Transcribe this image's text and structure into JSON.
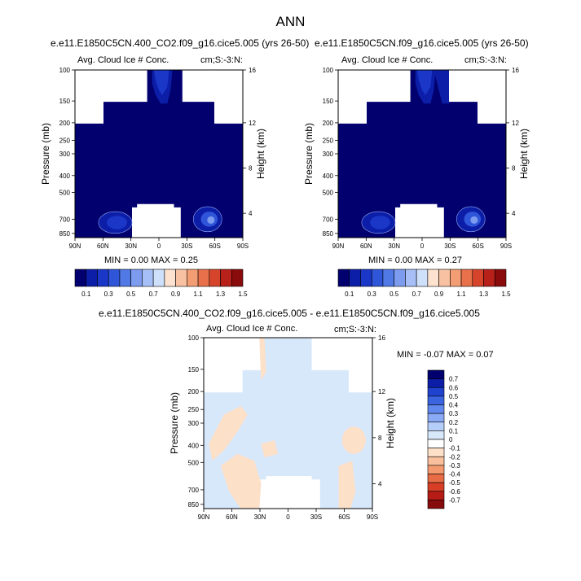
{
  "main_title": "ANN",
  "colors": {
    "seq": [
      "#02006e",
      "#0c1ea8",
      "#1a37c8",
      "#2f55d8",
      "#5079e6",
      "#7d9cf0",
      "#a6c0f7",
      "#cfe0fb",
      "#fce2cf",
      "#f8c2a2",
      "#f39d74",
      "#e8704a",
      "#d6452b",
      "#b8201a",
      "#8a0b0b"
    ],
    "div": [
      "#02006e",
      "#0c1ea8",
      "#1f43cf",
      "#3a64e0",
      "#6088ee",
      "#8aaaf5",
      "#b5cdf9",
      "#d8e8fb",
      "#ffffff",
      "#fde0c8",
      "#f9c09d",
      "#f39a70",
      "#e86c45",
      "#d63f26",
      "#b51c15",
      "#870b0b"
    ],
    "background": "#ffffff"
  },
  "chart_data": [
    {
      "type": "contour",
      "title": "e.e11.E1850C5CN.400_CO2.f09_g16.cice5.005 (yrs 26-50)",
      "subtitle_left": "Avg. Cloud Ice # Conc.",
      "subtitle_right": "cm;S:-3:N:",
      "ylabel": "Pressure (mb)",
      "ylabel_right": "Height (km)",
      "xticks": [
        "90N",
        "60N",
        "30N",
        "0",
        "30S",
        "60S",
        "90S"
      ],
      "yticks": [
        "100",
        "150",
        "200",
        "250",
        "300",
        "400",
        "500",
        "700",
        "850"
      ],
      "yticks_right": [
        "16",
        "12",
        "8",
        "4"
      ],
      "min_max": "MIN =  0.00  MAX =  0.25",
      "levels": [
        "0.1",
        "0.3",
        "0.5",
        "0.7",
        "0.9",
        "1.1",
        "1.3",
        "1.5"
      ],
      "fill_color": "#02006e"
    },
    {
      "type": "contour",
      "title": "e.e11.E1850C5CN.f09_g16.cice5.005 (yrs 26-50)",
      "subtitle_left": "Avg. Cloud Ice # Conc.",
      "subtitle_right": "cm;S:-3:N:",
      "ylabel": "Pressure (mb)",
      "ylabel_right": "Height (km)",
      "xticks": [
        "90N",
        "60N",
        "30N",
        "0",
        "30S",
        "60S",
        "90S"
      ],
      "yticks": [
        "100",
        "150",
        "200",
        "250",
        "300",
        "400",
        "500",
        "700",
        "850"
      ],
      "yticks_right": [
        "16",
        "12",
        "8",
        "4"
      ],
      "min_max": "MIN =  0.00  MAX =  0.27",
      "levels": [
        "0.1",
        "0.3",
        "0.5",
        "0.7",
        "0.9",
        "1.1",
        "1.3",
        "1.5"
      ],
      "fill_color": "#02006e"
    },
    {
      "type": "contour-difference",
      "title": "e.e11.E1850C5CN.400_CO2.f09_g16.cice5.005 - e.e11.E1850C5CN.f09_g16.cice5.005",
      "subtitle_left": "Avg. Cloud Ice # Conc.",
      "subtitle_right": "cm;S:-3:N:",
      "ylabel": "Pressure (mb)",
      "ylabel_right": "Height (km)",
      "xticks": [
        "90N",
        "60N",
        "30N",
        "0",
        "30S",
        "60S",
        "90S"
      ],
      "yticks": [
        "100",
        "150",
        "200",
        "250",
        "300",
        "400",
        "500",
        "700",
        "850"
      ],
      "yticks_right": [
        "16",
        "12",
        "8",
        "4"
      ],
      "min_max": "MIN =  -0.07  MAX =   0.07",
      "levels": [
        "0.7",
        "0.6",
        "0.5",
        "0.4",
        "0.3",
        "0.2",
        "0.1",
        "0",
        "-0.1",
        "-0.2",
        "-0.3",
        "-0.4",
        "-0.5",
        "-0.6",
        "-0.7"
      ],
      "fill_color": "#d8e8fb"
    }
  ]
}
